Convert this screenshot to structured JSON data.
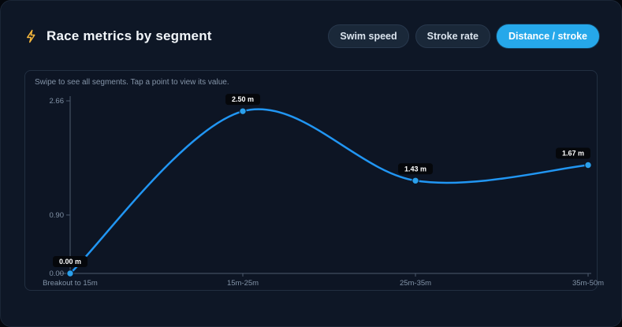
{
  "header": {
    "title": "Race metrics by segment"
  },
  "tabs": [
    {
      "label": "Swim speed",
      "active": false
    },
    {
      "label": "Stroke rate",
      "active": false
    },
    {
      "label": "Distance / stroke",
      "active": true
    }
  ],
  "chart": {
    "hint": "Swipe to see all segments. Tap a point to view its value."
  },
  "chart_data": {
    "type": "line",
    "title": "Race metrics by segment",
    "active_metric": "Distance / stroke",
    "categories": [
      "Breakout to 15m",
      "15m-25m",
      "25m-35m",
      "35m-50m"
    ],
    "values": [
      0.0,
      2.5,
      1.43,
      1.67
    ],
    "point_labels": [
      "0.00 m",
      "2.50 m",
      "1.43 m",
      "1.67 m"
    ],
    "unit": "m",
    "yticks": [
      "0.00",
      "0.90",
      "2.66"
    ],
    "ytick_values": [
      0.0,
      0.9,
      2.66
    ],
    "ylim": [
      0,
      2.66
    ],
    "xlabel": "",
    "ylabel": "",
    "grid": false,
    "legend": "none",
    "colors": {
      "line": "#2196f3",
      "point": "#2aa0ec",
      "tooltip_bg": "#05070b",
      "tooltip_text": "#ffffff",
      "axis": "#4d5b6e",
      "tick_text": "#8293a7",
      "accent": "#26a8ea",
      "bolt": "#f6b83c"
    }
  }
}
